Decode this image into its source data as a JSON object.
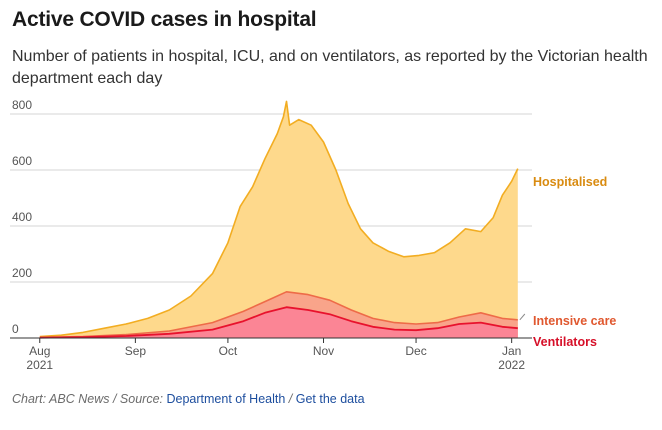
{
  "title": "Active COVID cases in hospital",
  "subtitle": "Number of patients in hospital, ICU, and on ventilators, as reported by the Victorian health department each day",
  "footer": {
    "chart_by": "Chart: ABC News",
    "source_prefix": "Source:",
    "source_link": "Department of Health",
    "data_link": "Get the data"
  },
  "colors": {
    "hospitalised_fill": "#fed98c",
    "hospitalised_line": "#f2ad22",
    "hospitalised_label": "#d98b10",
    "icu_fill": "#f9a48a",
    "icu_line": "#ee6b48",
    "icu_label": "#e0582f",
    "vent_fill": "#fb8595",
    "vent_line": "#e8122d",
    "vent_label": "#d60f28"
  },
  "chart_data": {
    "type": "area",
    "title": "Active COVID cases in hospital",
    "x_ticks": [
      {
        "line1": "Aug",
        "line2": "2021",
        "date": "2021-08-01"
      },
      {
        "line1": "Sep",
        "line2": "",
        "date": "2021-09-01"
      },
      {
        "line1": "Oct",
        "line2": "",
        "date": "2021-10-01"
      },
      {
        "line1": "Nov",
        "line2": "",
        "date": "2021-11-01"
      },
      {
        "line1": "Dec",
        "line2": "",
        "date": "2021-12-01"
      },
      {
        "line1": "Jan",
        "line2": "2022",
        "date": "2022-01-01"
      }
    ],
    "y_ticks": [
      0,
      200,
      400,
      600,
      800
    ],
    "ylim": [
      0,
      850
    ],
    "xlim": [
      "2021-07-23",
      "2022-01-05"
    ],
    "grid": true,
    "series": [
      {
        "name": "Hospitalised",
        "points": [
          [
            "2021-08-01",
            5
          ],
          [
            "2021-08-08",
            10
          ],
          [
            "2021-08-15",
            20
          ],
          [
            "2021-08-22",
            35
          ],
          [
            "2021-08-29",
            50
          ],
          [
            "2021-09-05",
            70
          ],
          [
            "2021-09-12",
            100
          ],
          [
            "2021-09-19",
            150
          ],
          [
            "2021-09-26",
            230
          ],
          [
            "2021-10-01",
            340
          ],
          [
            "2021-10-05",
            470
          ],
          [
            "2021-10-09",
            540
          ],
          [
            "2021-10-13",
            640
          ],
          [
            "2021-10-17",
            730
          ],
          [
            "2021-10-19",
            790
          ],
          [
            "2021-10-20",
            845
          ],
          [
            "2021-10-21",
            760
          ],
          [
            "2021-10-24",
            780
          ],
          [
            "2021-10-28",
            760
          ],
          [
            "2021-11-01",
            700
          ],
          [
            "2021-11-05",
            600
          ],
          [
            "2021-11-09",
            480
          ],
          [
            "2021-11-13",
            390
          ],
          [
            "2021-11-17",
            340
          ],
          [
            "2021-11-22",
            310
          ],
          [
            "2021-11-27",
            290
          ],
          [
            "2021-12-02",
            295
          ],
          [
            "2021-12-07",
            305
          ],
          [
            "2021-12-12",
            340
          ],
          [
            "2021-12-17",
            390
          ],
          [
            "2021-12-22",
            380
          ],
          [
            "2021-12-26",
            430
          ],
          [
            "2021-12-29",
            510
          ],
          [
            "2022-01-01",
            560
          ],
          [
            "2022-01-03",
            605
          ]
        ]
      },
      {
        "name": "Intensive care",
        "points": [
          [
            "2021-08-01",
            2
          ],
          [
            "2021-08-15",
            5
          ],
          [
            "2021-08-29",
            12
          ],
          [
            "2021-09-12",
            25
          ],
          [
            "2021-09-26",
            55
          ],
          [
            "2021-10-06",
            95
          ],
          [
            "2021-10-13",
            130
          ],
          [
            "2021-10-20",
            165
          ],
          [
            "2021-10-27",
            155
          ],
          [
            "2021-11-03",
            135
          ],
          [
            "2021-11-10",
            100
          ],
          [
            "2021-11-17",
            70
          ],
          [
            "2021-11-24",
            55
          ],
          [
            "2021-12-01",
            50
          ],
          [
            "2021-12-08",
            55
          ],
          [
            "2021-12-15",
            75
          ],
          [
            "2021-12-22",
            90
          ],
          [
            "2021-12-29",
            70
          ],
          [
            "2022-01-03",
            65
          ]
        ]
      },
      {
        "name": "Ventilators",
        "points": [
          [
            "2021-08-01",
            1
          ],
          [
            "2021-08-15",
            3
          ],
          [
            "2021-08-29",
            7
          ],
          [
            "2021-09-12",
            15
          ],
          [
            "2021-09-26",
            30
          ],
          [
            "2021-10-06",
            60
          ],
          [
            "2021-10-13",
            90
          ],
          [
            "2021-10-20",
            110
          ],
          [
            "2021-10-27",
            100
          ],
          [
            "2021-11-03",
            85
          ],
          [
            "2021-11-10",
            60
          ],
          [
            "2021-11-17",
            40
          ],
          [
            "2021-11-24",
            30
          ],
          [
            "2021-12-01",
            28
          ],
          [
            "2021-12-08",
            35
          ],
          [
            "2021-12-15",
            50
          ],
          [
            "2021-12-22",
            55
          ],
          [
            "2021-12-29",
            40
          ],
          [
            "2022-01-03",
            35
          ]
        ]
      }
    ]
  }
}
